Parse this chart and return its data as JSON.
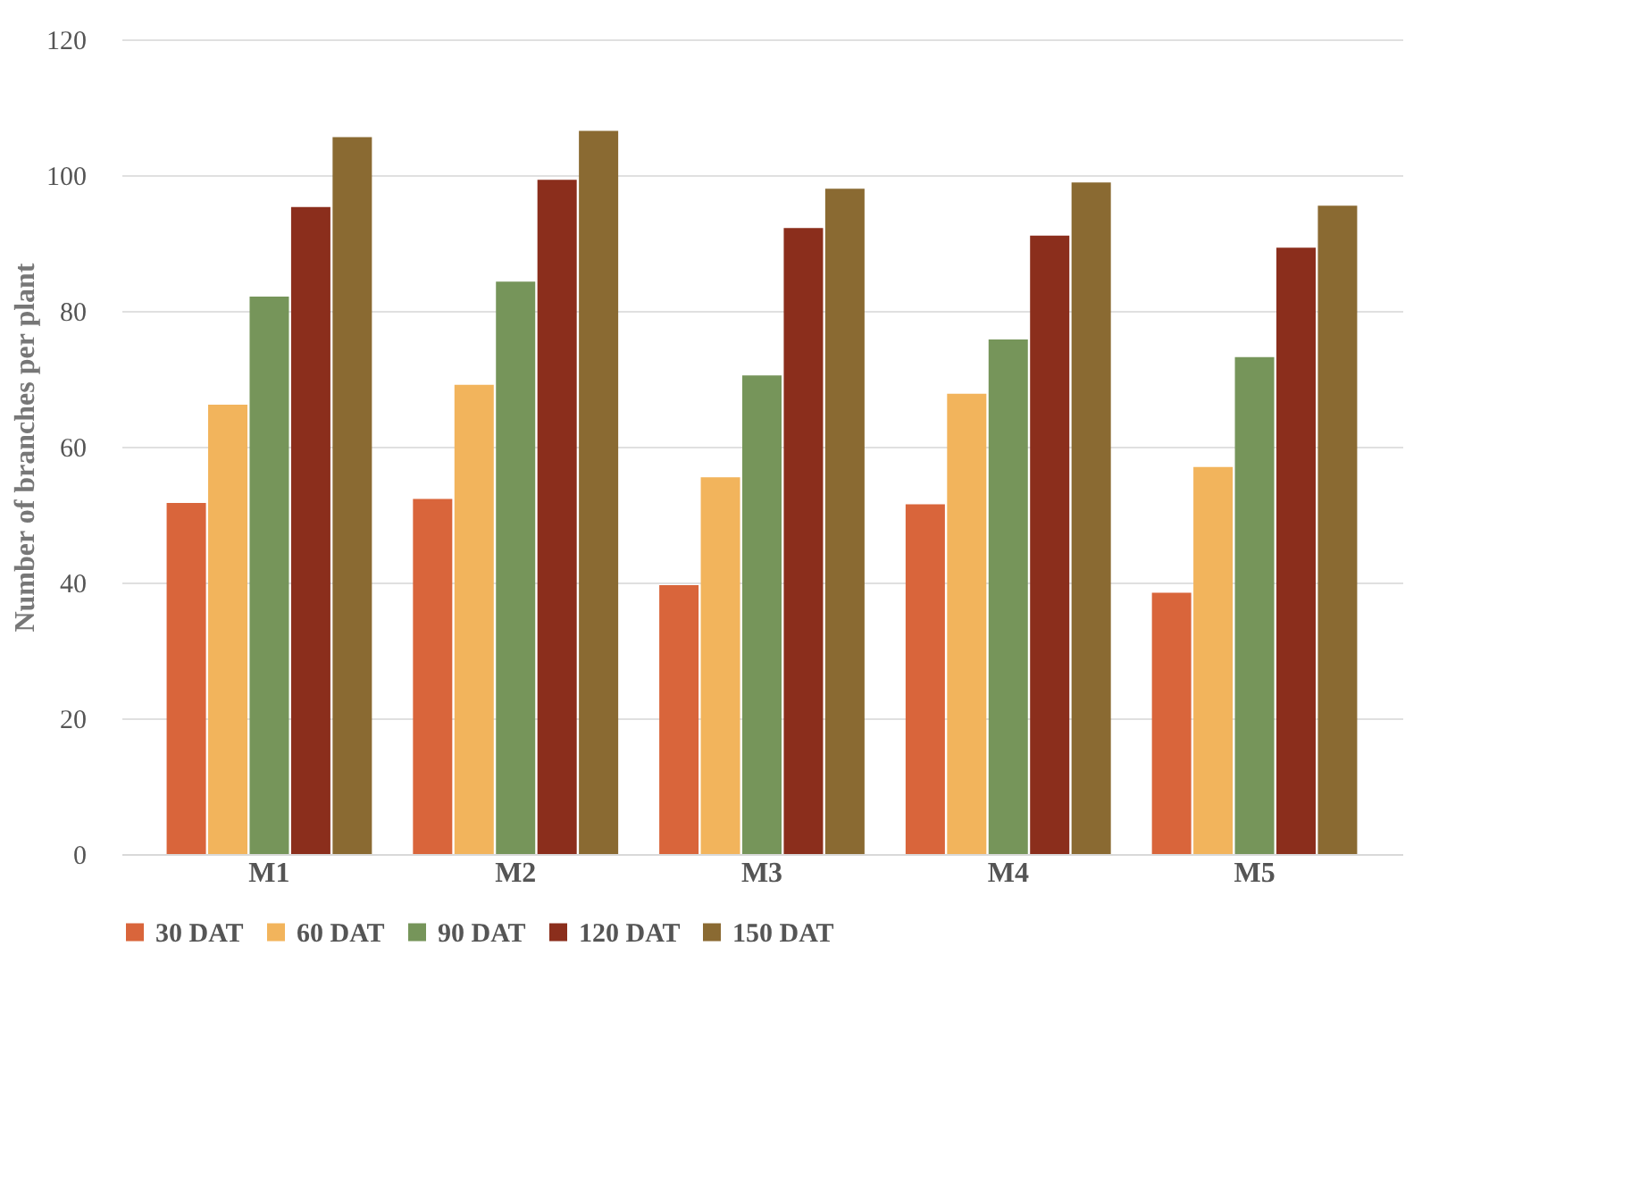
{
  "chart_data": {
    "type": "bar",
    "ylabel": "Number of branches per plant",
    "categories": [
      "M1",
      "M2",
      "M3",
      "M4",
      "M5"
    ],
    "series": [
      {
        "name": "30 DAT",
        "color": "#d9653b",
        "values": [
          51.7,
          52.3,
          39.6,
          51.5,
          38.5
        ]
      },
      {
        "name": "60 DAT",
        "color": "#f2b45c",
        "values": [
          66.2,
          69.1,
          55.5,
          67.8,
          57.0
        ]
      },
      {
        "name": "90 DAT",
        "color": "#76955a",
        "values": [
          82.1,
          84.3,
          70.5,
          75.8,
          73.2
        ]
      },
      {
        "name": "120 DAT",
        "color": "#8b2e1c",
        "values": [
          95.3,
          99.3,
          92.2,
          91.1,
          89.3
        ]
      },
      {
        "name": "150 DAT",
        "color": "#8a6a32",
        "values": [
          105.6,
          106.5,
          98.0,
          98.9,
          95.5
        ]
      }
    ],
    "ylim": [
      0,
      120
    ],
    "yticks": [
      0,
      20,
      40,
      60,
      80,
      100,
      120
    ],
    "grid": "y",
    "legend": "bottom"
  }
}
